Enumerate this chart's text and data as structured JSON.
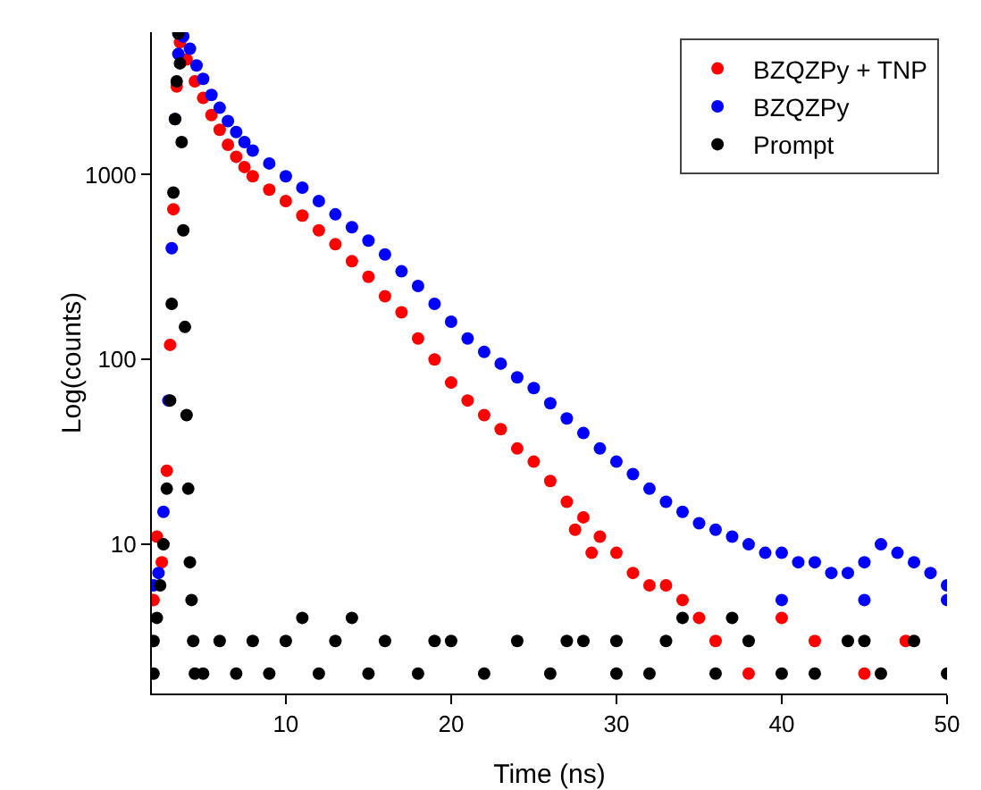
{
  "chart_data": {
    "type": "scatter",
    "xlabel": "Time (ns)",
    "ylabel": "Log(counts)",
    "log": "y",
    "xlim": [
      1.9,
      50
    ],
    "xticks": [
      10,
      20,
      30,
      40,
      50
    ],
    "ylim": [
      1.56,
      5900
    ],
    "yticks": [
      10,
      100,
      1000
    ],
    "grid": false,
    "legend": "top right",
    "marker": "circle",
    "series": [
      {
        "name": "BZQZPy + TNP",
        "color": "#ff0000",
        "x": [
          2.0,
          2.2,
          2.5,
          2.8,
          3.0,
          3.2,
          3.4,
          3.6,
          4.0,
          4.5,
          5,
          5.5,
          6,
          6.5,
          7,
          7.5,
          8,
          9,
          10,
          11,
          12,
          13,
          14,
          15,
          16,
          17,
          18,
          19,
          20,
          21,
          22,
          23,
          24,
          25,
          26,
          27,
          27.5,
          28,
          28.5,
          29,
          30,
          31,
          32,
          33,
          34,
          35,
          36,
          38,
          40,
          42,
          45,
          47.5
        ],
        "values": [
          5,
          11,
          8,
          25,
          120,
          650,
          3000,
          5200,
          4200,
          3200,
          2600,
          2100,
          1750,
          1450,
          1250,
          1100,
          980,
          830,
          720,
          600,
          500,
          420,
          340,
          280,
          220,
          180,
          130,
          100,
          75,
          60,
          50,
          42,
          33,
          28,
          22,
          17,
          12,
          14,
          9,
          11,
          9,
          7,
          6,
          6,
          5,
          4,
          3,
          2,
          4,
          3,
          2,
          3
        ]
      },
      {
        "name": "BZQZPy",
        "color": "#0000ff",
        "x": [
          2.0,
          2.3,
          2.6,
          2.9,
          3.1,
          3.3,
          3.5,
          3.8,
          4.2,
          4.6,
          5,
          5.5,
          6,
          6.5,
          7,
          7.5,
          8,
          9,
          10,
          11,
          12,
          13,
          14,
          15,
          16,
          17,
          18,
          19,
          20,
          21,
          22,
          23,
          24,
          25,
          26,
          27,
          28,
          29,
          30,
          31,
          32,
          33,
          34,
          35,
          36,
          37,
          38,
          39,
          40,
          41,
          42,
          43,
          44,
          45,
          46,
          47,
          48,
          49,
          50,
          40,
          45,
          50
        ],
        "values": [
          6,
          7,
          15,
          60,
          400,
          2000,
          4500,
          5600,
          4800,
          3900,
          3300,
          2700,
          2300,
          1950,
          1700,
          1500,
          1350,
          1150,
          980,
          850,
          720,
          610,
          520,
          440,
          370,
          300,
          250,
          200,
          160,
          130,
          110,
          95,
          80,
          70,
          58,
          48,
          40,
          33,
          28,
          24,
          20,
          17,
          15,
          13,
          12,
          11,
          10,
          9,
          9,
          8,
          8,
          7,
          7,
          8,
          10,
          9,
          8,
          7,
          6,
          5,
          5,
          5
        ]
      },
      {
        "name": "Prompt",
        "color": "#000000",
        "x": [
          2.0,
          2.0,
          2.2,
          2.4,
          2.6,
          2.8,
          3.0,
          3.1,
          3.2,
          3.3,
          3.4,
          3.5,
          3.6,
          3.7,
          3.8,
          3.9,
          4.0,
          4.1,
          4.2,
          4.3,
          4.4,
          4.5,
          5,
          6,
          7,
          8,
          9,
          10,
          11,
          12,
          13,
          14,
          15,
          16,
          18,
          19,
          20,
          22,
          24,
          26,
          27,
          28,
          30,
          30,
          32,
          33,
          34,
          36,
          37,
          38,
          40,
          42,
          44,
          45,
          46,
          48,
          50
        ],
        "values": [
          2,
          3,
          4,
          6,
          10,
          20,
          60,
          200,
          800,
          2000,
          3200,
          5800,
          4000,
          1500,
          500,
          150,
          50,
          20,
          8,
          5,
          3,
          2,
          2,
          3,
          2,
          3,
          2,
          3,
          4,
          2,
          3,
          4,
          2,
          3,
          2,
          3,
          3,
          2,
          3,
          2,
          3,
          3,
          3,
          2,
          2,
          3,
          4,
          2,
          4,
          3,
          2,
          2,
          3,
          3,
          2,
          3,
          2
        ]
      }
    ]
  }
}
